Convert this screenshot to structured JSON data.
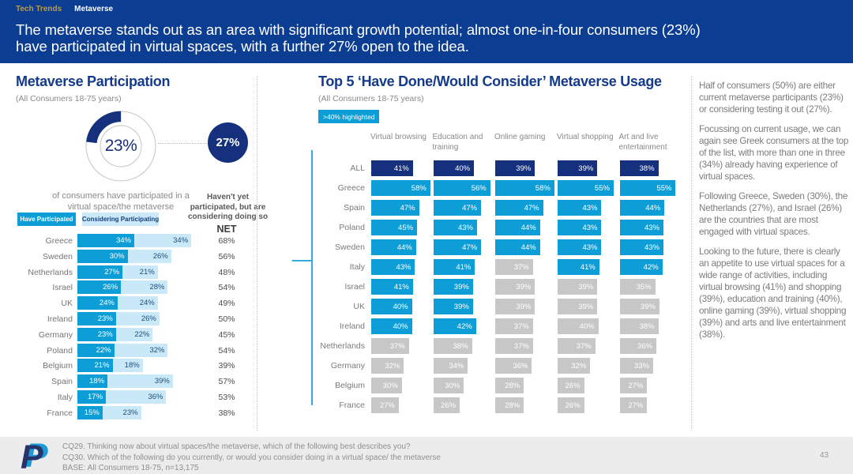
{
  "tabs": [
    {
      "label": "Tech Trends"
    },
    {
      "label": "Metaverse"
    }
  ],
  "banner": {
    "line1": "The metaverse stands out as an area with significant growth potential; almost one-in-four consumers (23%)",
    "line2": "have participated in virtual spaces, with a further 27% open to the idea."
  },
  "left": {
    "title": "Metaverse Participation",
    "subtitle": "(All Consumers 18-75 years)"
  },
  "middle": {
    "title": "Top 5 ‘Have Done/Would Consider’ Metaverse Usage",
    "subtitle": "(All Consumers 18-75 years)",
    "badge": ">40% highlighted"
  },
  "right": {
    "paragraphs": [
      "Half of consumers (50%) are either current metaverse participants (23%) or considering testing it out (27%).",
      "Focussing on current usage, we can again see Greek consumers at the top of the list, with more than one in three (34%) already having experience of virtual spaces.",
      "Following Greece, Sweden (30%), the Netherlands (27%), and Israel (26%) are the countries that are most engaged with virtual spaces.",
      "Looking to the future, there is clearly an appetite to use virtual spaces for a wide range of activities, including virtual browsing (41%) and shopping (39%), education and training (40%), online gaming (39%), virtual shopping (39%) and arts and live entertainment (38%)."
    ]
  },
  "footer": {
    "logo": "paypal-logo",
    "lines": [
      "CQ29. Thinking now about virtual spaces/the metaverse, which of the following best describes you?",
      "CQ30. Which of the following do you currently, or would you consider doing in a virtual space/ the metaverse",
      "BASE: All Consumers 18-75, n=13,175"
    ],
    "page": "43"
  },
  "colors": {
    "banner_blue": "#0b3d92",
    "navy": "#15317d",
    "bright_blue": "#0d9ed8",
    "light_blue": "#c9e8f8",
    "gray_bar": "#c7c7c7",
    "title_navy": "#143a8b"
  },
  "chart_data": [
    {
      "type": "pie",
      "title": "Metaverse Participation",
      "subtitle": "(All Consumers 18-75 years)",
      "slices": [
        {
          "label": "have participated",
          "value": 23
        },
        {
          "label": "rest",
          "value": 77
        }
      ],
      "center_label": "23%",
      "caption": "of consumers have participated in a virtual space/the metaverse",
      "annotation": {
        "value": 27,
        "label": "27%",
        "caption": "Haven't yet participated, but are considering doing so"
      }
    },
    {
      "type": "bar",
      "title": "Metaverse participation by country",
      "legend": [
        "Have Participated",
        "Considering Participating"
      ],
      "net_label": "NET",
      "categories": [
        "Greece",
        "Sweden",
        "Netherlands",
        "Israel",
        "UK",
        "Ireland",
        "Germany",
        "Poland",
        "Belgium",
        "Spain",
        "Italy",
        "France"
      ],
      "series": [
        {
          "name": "Have Participated",
          "values": [
            34,
            30,
            27,
            26,
            24,
            23,
            23,
            22,
            21,
            18,
            17,
            15
          ]
        },
        {
          "name": "Considering Participating",
          "values": [
            34,
            26,
            21,
            28,
            24,
            26,
            22,
            32,
            18,
            39,
            36,
            23
          ]
        }
      ],
      "net": [
        68,
        56,
        48,
        54,
        49,
        50,
        45,
        54,
        39,
        57,
        53,
        38
      ]
    },
    {
      "type": "table",
      "title": "Top 5 'Have Done/Would Consider' Metaverse Usage",
      "badge": ">40% highlighted",
      "columns": [
        "Virtual browsing",
        "Education and training",
        "Online gaming",
        "Virtual shopping",
        "Art and live entertainment"
      ],
      "rows": [
        {
          "label": "ALL",
          "style": "all",
          "values": [
            41,
            40,
            39,
            39,
            38
          ],
          "highlighted": [
            true,
            true,
            true,
            true,
            true
          ]
        },
        {
          "label": "Greece",
          "style": "row",
          "values": [
            58,
            56,
            58,
            55,
            55
          ],
          "highlighted": [
            true,
            true,
            true,
            true,
            true
          ]
        },
        {
          "label": "Spain",
          "style": "row",
          "values": [
            47,
            47,
            47,
            43,
            44
          ],
          "highlighted": [
            true,
            true,
            true,
            true,
            true
          ]
        },
        {
          "label": "Poland",
          "style": "row",
          "values": [
            45,
            43,
            44,
            43,
            43
          ],
          "highlighted": [
            true,
            true,
            true,
            true,
            true
          ]
        },
        {
          "label": "Sweden",
          "style": "row",
          "values": [
            44,
            47,
            44,
            43,
            43
          ],
          "highlighted": [
            true,
            true,
            true,
            true,
            true
          ]
        },
        {
          "label": "Italy",
          "style": "row",
          "values": [
            43,
            41,
            37,
            41,
            42
          ],
          "highlighted": [
            true,
            true,
            false,
            true,
            true
          ]
        },
        {
          "label": "Israel",
          "style": "row",
          "values": [
            41,
            39,
            39,
            39,
            35
          ],
          "highlighted": [
            true,
            true,
            false,
            false,
            false
          ]
        },
        {
          "label": "UK",
          "style": "row",
          "values": [
            40,
            39,
            39,
            39,
            39
          ],
          "highlighted": [
            true,
            true,
            false,
            false,
            false
          ]
        },
        {
          "label": "Ireland",
          "style": "row",
          "values": [
            40,
            42,
            37,
            40,
            38
          ],
          "highlighted": [
            true,
            true,
            false,
            false,
            false
          ]
        },
        {
          "label": "Netherlands",
          "style": "row",
          "values": [
            37,
            38,
            37,
            37,
            36
          ],
          "highlighted": [
            false,
            false,
            false,
            false,
            false
          ]
        },
        {
          "label": "Germany",
          "style": "row",
          "values": [
            32,
            34,
            36,
            32,
            33
          ],
          "highlighted": [
            false,
            false,
            false,
            false,
            false
          ]
        },
        {
          "label": "Belgium",
          "style": "row",
          "values": [
            30,
            30,
            28,
            26,
            27
          ],
          "highlighted": [
            false,
            false,
            false,
            false,
            false
          ]
        },
        {
          "label": "France",
          "style": "row",
          "values": [
            27,
            26,
            28,
            26,
            27
          ],
          "highlighted": [
            false,
            false,
            false,
            false,
            false
          ]
        }
      ]
    }
  ]
}
